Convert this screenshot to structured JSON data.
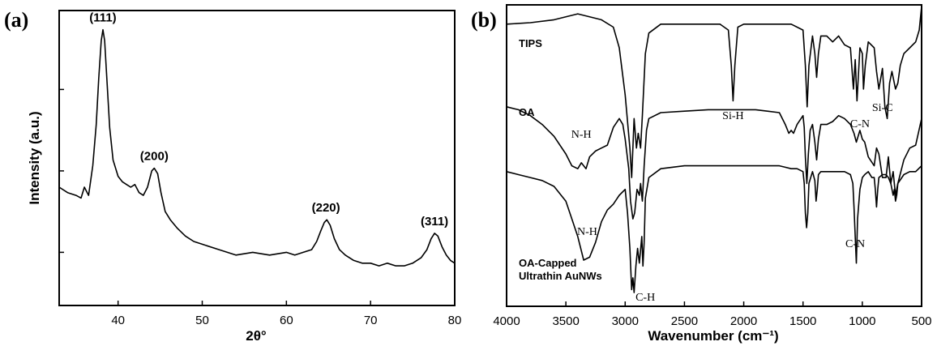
{
  "chart_data": [
    {
      "panel": "(a)",
      "type": "line",
      "xlabel": "2θ°",
      "ylabel": "Intensity (a.u.)",
      "xlim": [
        33,
        80
      ],
      "ylim": [
        0,
        1
      ],
      "xticks": [
        40,
        50,
        60,
        70,
        80
      ],
      "peaks": [
        {
          "label": "(111)",
          "x": 38.2
        },
        {
          "label": "(200)",
          "x": 44.3
        },
        {
          "label": "(220)",
          "x": 64.7
        },
        {
          "label": "(311)",
          "x": 77.6
        }
      ],
      "series": [
        {
          "x": [
            33,
            34,
            35,
            35.6,
            36,
            36.5,
            37,
            37.4,
            37.7,
            38,
            38.2,
            38.4,
            38.7,
            39,
            39.4,
            40,
            40.5,
            41,
            41.5,
            42,
            42.5,
            43,
            43.5,
            44,
            44.3,
            44.7,
            45.1,
            45.6,
            46.2,
            47,
            48,
            49,
            50,
            52,
            54,
            56,
            58,
            60,
            61,
            62,
            63,
            63.6,
            64.1,
            64.5,
            64.8,
            65.2,
            65.7,
            66.3,
            67,
            68,
            69,
            70,
            71,
            72,
            73,
            74,
            75,
            76,
            76.7,
            77.2,
            77.6,
            78,
            78.5,
            79,
            79.5,
            80
          ],
          "y": [
            0.4,
            0.38,
            0.37,
            0.36,
            0.4,
            0.37,
            0.48,
            0.63,
            0.8,
            0.94,
            0.98,
            0.94,
            0.78,
            0.62,
            0.5,
            0.44,
            0.42,
            0.41,
            0.4,
            0.41,
            0.38,
            0.37,
            0.4,
            0.46,
            0.47,
            0.45,
            0.38,
            0.31,
            0.28,
            0.25,
            0.22,
            0.2,
            0.19,
            0.17,
            0.15,
            0.16,
            0.15,
            0.16,
            0.15,
            0.16,
            0.17,
            0.2,
            0.24,
            0.27,
            0.28,
            0.26,
            0.21,
            0.17,
            0.15,
            0.13,
            0.12,
            0.12,
            0.11,
            0.12,
            0.11,
            0.11,
            0.12,
            0.14,
            0.17,
            0.21,
            0.23,
            0.22,
            0.18,
            0.15,
            0.13,
            0.12
          ]
        }
      ]
    },
    {
      "panel": "(b)",
      "type": "line",
      "xlabel": "Wavenumber (cm⁻¹)",
      "xlim": [
        4000,
        500
      ],
      "ylim": [
        0,
        1
      ],
      "xticks": [
        4000,
        3500,
        3000,
        2500,
        2000,
        1500,
        1000,
        500
      ],
      "series": [
        {
          "name": "TIPS",
          "x": [
            4000,
            3800,
            3600,
            3400,
            3200,
            3100,
            3050,
            3000,
            2960,
            2945,
            2925,
            2905,
            2890,
            2870,
            2855,
            2830,
            2800,
            2700,
            2600,
            2500,
            2300,
            2200,
            2130,
            2105,
            2090,
            2075,
            2050,
            2000,
            1900,
            1800,
            1700,
            1600,
            1500,
            1480,
            1465,
            1450,
            1420,
            1400,
            1385,
            1370,
            1350,
            1300,
            1250,
            1200,
            1150,
            1100,
            1075,
            1060,
            1045,
            1020,
            1000,
            990,
            975,
            950,
            900,
            880,
            860,
            830,
            810,
            790,
            770,
            750,
            720,
            700,
            680,
            650,
            600,
            550,
            520,
            500
          ],
          "y": [
            0.94,
            0.945,
            0.955,
            0.975,
            0.955,
            0.93,
            0.86,
            0.7,
            0.52,
            0.42,
            0.62,
            0.52,
            0.57,
            0.52,
            0.63,
            0.84,
            0.91,
            0.94,
            0.94,
            0.94,
            0.94,
            0.94,
            0.92,
            0.8,
            0.68,
            0.8,
            0.93,
            0.94,
            0.94,
            0.94,
            0.94,
            0.94,
            0.92,
            0.8,
            0.66,
            0.8,
            0.9,
            0.84,
            0.76,
            0.84,
            0.9,
            0.9,
            0.88,
            0.9,
            0.87,
            0.86,
            0.72,
            0.82,
            0.68,
            0.86,
            0.84,
            0.72,
            0.8,
            0.88,
            0.86,
            0.78,
            0.72,
            0.79,
            0.66,
            0.62,
            0.74,
            0.78,
            0.72,
            0.74,
            0.8,
            0.84,
            0.86,
            0.88,
            0.92,
            1.0
          ]
        },
        {
          "name": "OA",
          "x": [
            4000,
            3900,
            3800,
            3700,
            3600,
            3500,
            3450,
            3400,
            3370,
            3330,
            3300,
            3250,
            3200,
            3150,
            3100,
            3050,
            3020,
            3000,
            2970,
            2955,
            2935,
            2920,
            2900,
            2880,
            2870,
            2855,
            2840,
            2820,
            2800,
            2700,
            2500,
            2300,
            2100,
            2000,
            1900,
            1800,
            1700,
            1650,
            1620,
            1600,
            1580,
            1550,
            1500,
            1490,
            1480,
            1468,
            1455,
            1440,
            1420,
            1400,
            1385,
            1370,
            1350,
            1300,
            1250,
            1200,
            1150,
            1100,
            1070,
            1050,
            1020,
            1000,
            980,
            950,
            900,
            880,
            860,
            830,
            800,
            780,
            760,
            740,
            720,
            700,
            650,
            600,
            550,
            500
          ],
          "y": [
            0.66,
            0.65,
            0.63,
            0.6,
            0.56,
            0.5,
            0.46,
            0.45,
            0.47,
            0.45,
            0.49,
            0.51,
            0.52,
            0.53,
            0.59,
            0.62,
            0.6,
            0.55,
            0.45,
            0.34,
            0.28,
            0.3,
            0.38,
            0.36,
            0.4,
            0.34,
            0.46,
            0.58,
            0.62,
            0.64,
            0.645,
            0.65,
            0.65,
            0.65,
            0.65,
            0.645,
            0.64,
            0.6,
            0.57,
            0.58,
            0.57,
            0.6,
            0.63,
            0.59,
            0.49,
            0.4,
            0.5,
            0.58,
            0.6,
            0.54,
            0.48,
            0.55,
            0.6,
            0.6,
            0.61,
            0.63,
            0.62,
            0.6,
            0.57,
            0.54,
            0.58,
            0.55,
            0.54,
            0.49,
            0.46,
            0.52,
            0.5,
            0.42,
            0.42,
            0.49,
            0.4,
            0.44,
            0.36,
            0.4,
            0.48,
            0.52,
            0.53,
            0.62
          ]
        },
        {
          "name": "OA-Capped Ultrathin AuNWs",
          "x": [
            4000,
            3900,
            3800,
            3700,
            3600,
            3500,
            3450,
            3400,
            3350,
            3300,
            3250,
            3200,
            3150,
            3100,
            3050,
            3000,
            2980,
            2960,
            2945,
            2935,
            2925,
            2910,
            2895,
            2880,
            2860,
            2850,
            2840,
            2830,
            2800,
            2700,
            2500,
            2300,
            2100,
            2000,
            1900,
            1800,
            1700,
            1650,
            1600,
            1550,
            1500,
            1490,
            1480,
            1470,
            1460,
            1450,
            1420,
            1400,
            1390,
            1380,
            1370,
            1350,
            1300,
            1250,
            1200,
            1150,
            1100,
            1080,
            1070,
            1060,
            1050,
            1040,
            1020,
            1000,
            980,
            950,
            920,
            900,
            890,
            880,
            870,
            860,
            830,
            800,
            780,
            760,
            740,
            730,
            720,
            710,
            700,
            650,
            600,
            550,
            500
          ],
          "y": [
            0.44,
            0.43,
            0.42,
            0.41,
            0.39,
            0.34,
            0.28,
            0.22,
            0.14,
            0.15,
            0.2,
            0.27,
            0.31,
            0.33,
            0.36,
            0.38,
            0.3,
            0.18,
            0.04,
            0.08,
            0.03,
            0.12,
            0.18,
            0.13,
            0.22,
            0.12,
            0.2,
            0.35,
            0.42,
            0.45,
            0.46,
            0.46,
            0.46,
            0.46,
            0.46,
            0.46,
            0.46,
            0.455,
            0.45,
            0.45,
            0.44,
            0.4,
            0.3,
            0.25,
            0.3,
            0.4,
            0.44,
            0.41,
            0.34,
            0.38,
            0.43,
            0.44,
            0.44,
            0.44,
            0.44,
            0.44,
            0.43,
            0.4,
            0.32,
            0.22,
            0.13,
            0.28,
            0.38,
            0.42,
            0.43,
            0.44,
            0.42,
            0.42,
            0.38,
            0.32,
            0.38,
            0.42,
            0.43,
            0.43,
            0.42,
            0.4,
            0.36,
            0.38,
            0.34,
            0.36,
            0.4,
            0.43,
            0.44,
            0.44,
            0.46
          ]
        }
      ],
      "annotations": [
        {
          "text": "N-H",
          "x": 3370
        },
        {
          "text": "Si-H",
          "x": 2090
        },
        {
          "text": "C-N",
          "x": 1020
        },
        {
          "text": "Si-C",
          "x": 830
        },
        {
          "text": "N-H",
          "x": 3320
        },
        {
          "text": "C-H",
          "x": 2830
        },
        {
          "text": "C-N",
          "x": 1060
        }
      ]
    }
  ]
}
